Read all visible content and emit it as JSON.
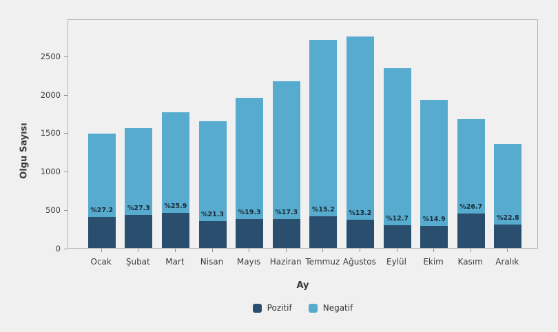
{
  "chart_data": {
    "type": "bar",
    "stacked": true,
    "title": "",
    "xlabel": "Ay",
    "ylabel": "Olgu Sayısı",
    "categories": [
      "Ocak",
      "Şubat",
      "Mart",
      "Nisan",
      "Mayıs",
      "Haziran",
      "Temmuz",
      "Ağustos",
      "Eylül",
      "Ekim",
      "Kasım",
      "Aralık"
    ],
    "series": [
      {
        "name": "Pozitif",
        "color": "#2a4e6e",
        "values": [
          404,
          426,
          457,
          351,
          377,
          375,
          410,
          363,
          297,
          287,
          446,
          308
        ]
      },
      {
        "name": "Negatif",
        "color": "#56abce",
        "values": [
          1081,
          1134,
          1308,
          1299,
          1578,
          1790,
          2290,
          2387,
          2043,
          1638,
          1224,
          1042
        ]
      }
    ],
    "totals": [
      1485,
      1560,
      1765,
      1650,
      1955,
      2165,
      2700,
      2750,
      2340,
      1925,
      1670,
      1350
    ],
    "bar_labels": [
      "%27.2",
      "%27.3",
      "%25.9",
      "%21.3",
      "%19.3",
      "%17.3",
      "%15.2",
      "%13.2",
      "%12.7",
      "%14.9",
      "%26.7",
      "%22.8"
    ],
    "yticks": [
      0,
      500,
      1000,
      1500,
      2000,
      2500
    ],
    "ylim": [
      0,
      2980
    ],
    "grid": false,
    "legend_position": "bottom"
  },
  "colors": {
    "background": "#f0f0f0",
    "spine": "#b3b3b3",
    "tick": "#8c8c8c",
    "tick_text": "#3d3d3d",
    "axis_label_text": "#3a3a3a",
    "bar_label_text": "#1b2a38"
  }
}
